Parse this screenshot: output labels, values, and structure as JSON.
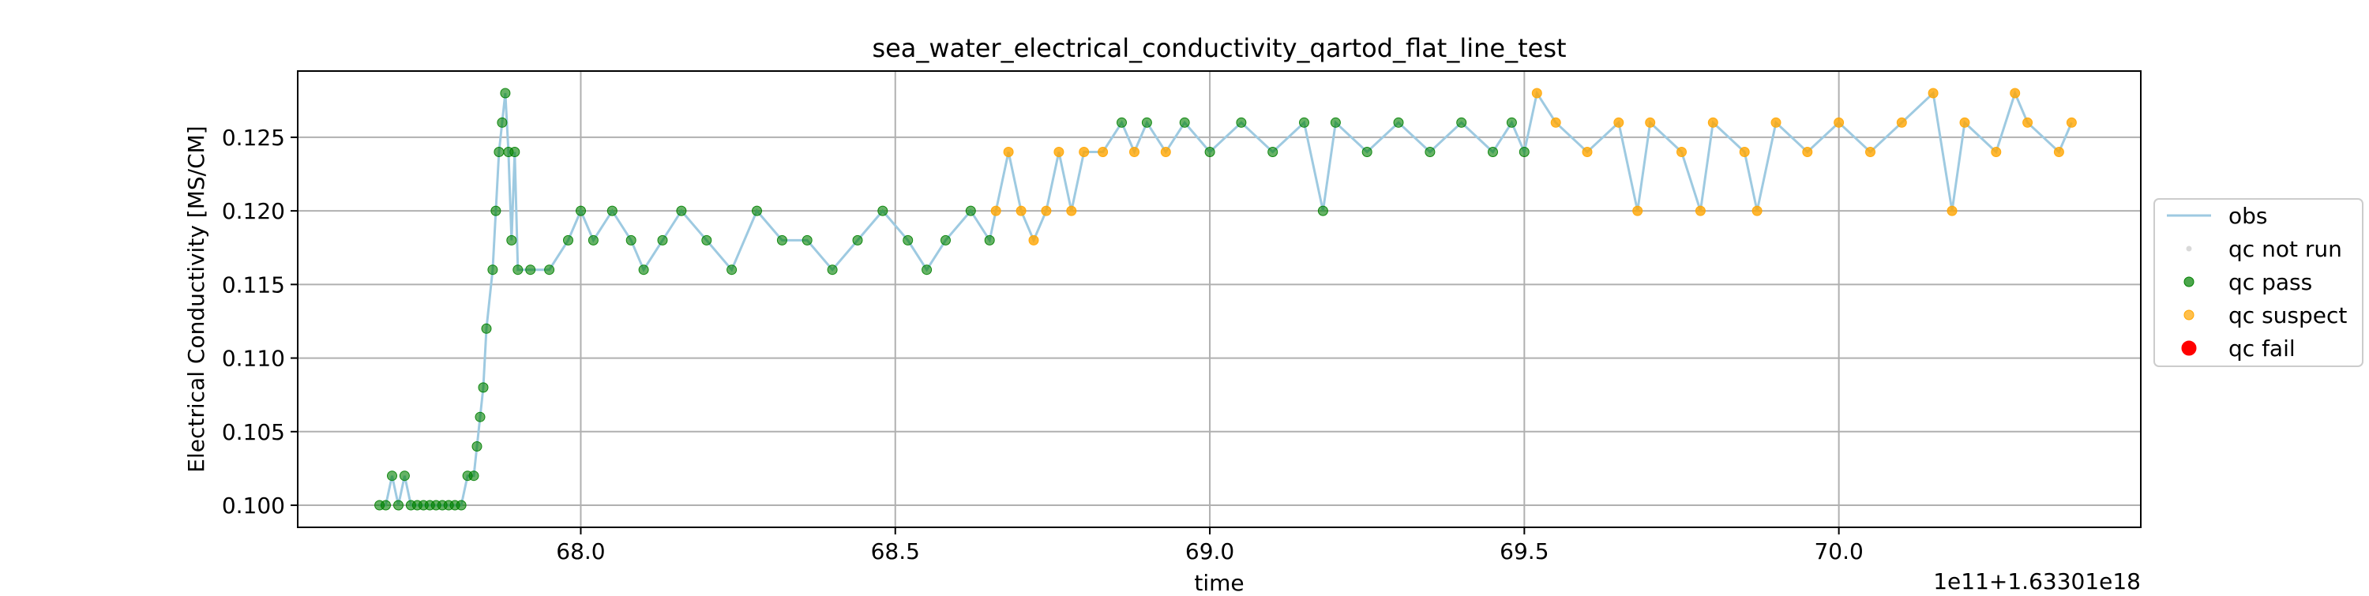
{
  "chart_data": {
    "type": "scatter",
    "title": "sea_water_electrical_conductivity_qartod_flat_line_test",
    "xlabel": "time",
    "ylabel": "Electrical Conductivity [MS/CM]",
    "x_offset_label": "1e11+1.63301e18",
    "xlim": [
      67.55,
      70.48
    ],
    "ylim": [
      0.0985,
      0.1295
    ],
    "x_ticks": [
      {
        "value": 68.0,
        "label": "68.0"
      },
      {
        "value": 68.5,
        "label": "68.5"
      },
      {
        "value": 69.0,
        "label": "69.0"
      },
      {
        "value": 69.5,
        "label": "69.5"
      },
      {
        "value": 70.0,
        "label": "70.0"
      }
    ],
    "y_ticks": [
      {
        "value": 0.1,
        "label": "0.100"
      },
      {
        "value": 0.105,
        "label": "0.105"
      },
      {
        "value": 0.11,
        "label": "0.110"
      },
      {
        "value": 0.115,
        "label": "0.115"
      },
      {
        "value": 0.12,
        "label": "0.120"
      },
      {
        "value": 0.125,
        "label": "0.125"
      }
    ],
    "grid": true,
    "legend_position": "outside-right",
    "colors": {
      "obs": "#9ecae1",
      "qc_not_run": "#d9d9d9",
      "qc_pass": "#008000",
      "qc_suspect": "#ffa500",
      "qc_fail": "#ff0000"
    },
    "legend": [
      {
        "key": "obs",
        "label": "obs",
        "kind": "line"
      },
      {
        "key": "qc_not_run",
        "label": "qc not run",
        "kind": "dot-small"
      },
      {
        "key": "qc_pass",
        "label": "qc pass",
        "kind": "dot"
      },
      {
        "key": "qc_suspect",
        "label": "qc suspect",
        "kind": "dot"
      },
      {
        "key": "qc_fail",
        "label": "qc fail",
        "kind": "dot-large"
      }
    ],
    "series": [
      {
        "name": "obs",
        "points": [
          [
            67.68,
            0.1
          ],
          [
            67.69,
            0.1
          ],
          [
            67.7,
            0.102
          ],
          [
            67.71,
            0.1
          ],
          [
            67.72,
            0.102
          ],
          [
            67.73,
            0.1
          ],
          [
            67.74,
            0.1
          ],
          [
            67.75,
            0.1
          ],
          [
            67.76,
            0.1
          ],
          [
            67.77,
            0.1
          ],
          [
            67.78,
            0.1
          ],
          [
            67.79,
            0.1
          ],
          [
            67.8,
            0.1
          ],
          [
            67.81,
            0.1
          ],
          [
            67.82,
            0.102
          ],
          [
            67.83,
            0.102
          ],
          [
            67.835,
            0.104
          ],
          [
            67.84,
            0.106
          ],
          [
            67.845,
            0.108
          ],
          [
            67.85,
            0.112
          ],
          [
            67.86,
            0.116
          ],
          [
            67.865,
            0.12
          ],
          [
            67.87,
            0.124
          ],
          [
            67.875,
            0.126
          ],
          [
            67.88,
            0.128
          ],
          [
            67.885,
            0.124
          ],
          [
            67.89,
            0.118
          ],
          [
            67.895,
            0.124
          ],
          [
            67.9,
            0.116
          ],
          [
            67.92,
            0.116
          ],
          [
            67.95,
            0.116
          ],
          [
            67.98,
            0.118
          ],
          [
            68.0,
            0.12
          ],
          [
            68.02,
            0.118
          ],
          [
            68.05,
            0.12
          ],
          [
            68.08,
            0.118
          ],
          [
            68.1,
            0.116
          ],
          [
            68.13,
            0.118
          ],
          [
            68.16,
            0.12
          ],
          [
            68.2,
            0.118
          ],
          [
            68.24,
            0.116
          ],
          [
            68.28,
            0.12
          ],
          [
            68.32,
            0.118
          ],
          [
            68.36,
            0.118
          ],
          [
            68.4,
            0.116
          ],
          [
            68.44,
            0.118
          ],
          [
            68.48,
            0.12
          ],
          [
            68.52,
            0.118
          ],
          [
            68.55,
            0.116
          ],
          [
            68.58,
            0.118
          ],
          [
            68.62,
            0.12
          ],
          [
            68.65,
            0.118
          ],
          [
            68.66,
            0.12
          ],
          [
            68.68,
            0.124
          ],
          [
            68.7,
            0.12
          ],
          [
            68.72,
            0.118
          ],
          [
            68.74,
            0.12
          ],
          [
            68.76,
            0.124
          ],
          [
            68.78,
            0.12
          ],
          [
            68.8,
            0.124
          ],
          [
            68.83,
            0.124
          ],
          [
            68.86,
            0.126
          ],
          [
            68.88,
            0.124
          ],
          [
            68.9,
            0.126
          ],
          [
            68.93,
            0.124
          ],
          [
            68.96,
            0.126
          ],
          [
            69.0,
            0.124
          ],
          [
            69.05,
            0.126
          ],
          [
            69.1,
            0.124
          ],
          [
            69.15,
            0.126
          ],
          [
            69.18,
            0.12
          ],
          [
            69.2,
            0.126
          ],
          [
            69.25,
            0.124
          ],
          [
            69.3,
            0.126
          ],
          [
            69.35,
            0.124
          ],
          [
            69.4,
            0.126
          ],
          [
            69.45,
            0.124
          ],
          [
            69.48,
            0.126
          ],
          [
            69.5,
            0.124
          ],
          [
            69.52,
            0.128
          ],
          [
            69.55,
            0.126
          ],
          [
            69.6,
            0.124
          ],
          [
            69.65,
            0.126
          ],
          [
            69.68,
            0.12
          ],
          [
            69.7,
            0.126
          ],
          [
            69.75,
            0.124
          ],
          [
            69.78,
            0.12
          ],
          [
            69.8,
            0.126
          ],
          [
            69.85,
            0.124
          ],
          [
            69.87,
            0.12
          ],
          [
            69.9,
            0.126
          ],
          [
            69.95,
            0.124
          ],
          [
            70.0,
            0.126
          ],
          [
            70.05,
            0.124
          ],
          [
            70.1,
            0.126
          ],
          [
            70.15,
            0.128
          ],
          [
            70.18,
            0.12
          ],
          [
            70.2,
            0.126
          ],
          [
            70.25,
            0.124
          ],
          [
            70.28,
            0.128
          ],
          [
            70.3,
            0.126
          ],
          [
            70.35,
            0.124
          ],
          [
            70.37,
            0.126
          ]
        ]
      },
      {
        "name": "qc not run",
        "points": []
      },
      {
        "name": "qc pass",
        "points": [
          [
            67.68,
            0.1
          ],
          [
            67.69,
            0.1
          ],
          [
            67.7,
            0.102
          ],
          [
            67.71,
            0.1
          ],
          [
            67.72,
            0.102
          ],
          [
            67.73,
            0.1
          ],
          [
            67.74,
            0.1
          ],
          [
            67.75,
            0.1
          ],
          [
            67.76,
            0.1
          ],
          [
            67.77,
            0.1
          ],
          [
            67.78,
            0.1
          ],
          [
            67.79,
            0.1
          ],
          [
            67.8,
            0.1
          ],
          [
            67.81,
            0.1
          ],
          [
            67.82,
            0.102
          ],
          [
            67.83,
            0.102
          ],
          [
            67.835,
            0.104
          ],
          [
            67.84,
            0.106
          ],
          [
            67.845,
            0.108
          ],
          [
            67.85,
            0.112
          ],
          [
            67.86,
            0.116
          ],
          [
            67.865,
            0.12
          ],
          [
            67.87,
            0.124
          ],
          [
            67.875,
            0.126
          ],
          [
            67.88,
            0.128
          ],
          [
            67.885,
            0.124
          ],
          [
            67.89,
            0.118
          ],
          [
            67.895,
            0.124
          ],
          [
            67.9,
            0.116
          ],
          [
            67.92,
            0.116
          ],
          [
            67.95,
            0.116
          ],
          [
            67.98,
            0.118
          ],
          [
            68.0,
            0.12
          ],
          [
            68.02,
            0.118
          ],
          [
            68.05,
            0.12
          ],
          [
            68.08,
            0.118
          ],
          [
            68.1,
            0.116
          ],
          [
            68.13,
            0.118
          ],
          [
            68.16,
            0.12
          ],
          [
            68.2,
            0.118
          ],
          [
            68.24,
            0.116
          ],
          [
            68.28,
            0.12
          ],
          [
            68.32,
            0.118
          ],
          [
            68.36,
            0.118
          ],
          [
            68.4,
            0.116
          ],
          [
            68.44,
            0.118
          ],
          [
            68.48,
            0.12
          ],
          [
            68.52,
            0.118
          ],
          [
            68.55,
            0.116
          ],
          [
            68.58,
            0.118
          ],
          [
            68.62,
            0.12
          ],
          [
            68.65,
            0.118
          ],
          [
            68.86,
            0.126
          ],
          [
            68.9,
            0.126
          ],
          [
            68.96,
            0.126
          ],
          [
            69.0,
            0.124
          ],
          [
            69.05,
            0.126
          ],
          [
            69.1,
            0.124
          ],
          [
            69.15,
            0.126
          ],
          [
            69.18,
            0.12
          ],
          [
            69.2,
            0.126
          ],
          [
            69.25,
            0.124
          ],
          [
            69.3,
            0.126
          ],
          [
            69.35,
            0.124
          ],
          [
            69.4,
            0.126
          ],
          [
            69.45,
            0.124
          ],
          [
            69.48,
            0.126
          ],
          [
            69.5,
            0.124
          ]
        ]
      },
      {
        "name": "qc suspect",
        "points": [
          [
            68.66,
            0.12
          ],
          [
            68.68,
            0.124
          ],
          [
            68.7,
            0.12
          ],
          [
            68.72,
            0.118
          ],
          [
            68.74,
            0.12
          ],
          [
            68.76,
            0.124
          ],
          [
            68.78,
            0.12
          ],
          [
            68.8,
            0.124
          ],
          [
            68.83,
            0.124
          ],
          [
            68.88,
            0.124
          ],
          [
            68.93,
            0.124
          ],
          [
            69.52,
            0.128
          ],
          [
            69.55,
            0.126
          ],
          [
            69.6,
            0.124
          ],
          [
            69.65,
            0.126
          ],
          [
            69.68,
            0.12
          ],
          [
            69.7,
            0.126
          ],
          [
            69.75,
            0.124
          ],
          [
            69.78,
            0.12
          ],
          [
            69.8,
            0.126
          ],
          [
            69.85,
            0.124
          ],
          [
            69.87,
            0.12
          ],
          [
            69.9,
            0.126
          ],
          [
            69.95,
            0.124
          ],
          [
            70.0,
            0.126
          ],
          [
            70.05,
            0.124
          ],
          [
            70.1,
            0.126
          ],
          [
            70.15,
            0.128
          ],
          [
            70.18,
            0.12
          ],
          [
            70.2,
            0.126
          ],
          [
            70.25,
            0.124
          ],
          [
            70.28,
            0.128
          ],
          [
            70.3,
            0.126
          ],
          [
            70.35,
            0.124
          ],
          [
            70.37,
            0.126
          ]
        ]
      },
      {
        "name": "qc fail",
        "points": []
      }
    ]
  }
}
